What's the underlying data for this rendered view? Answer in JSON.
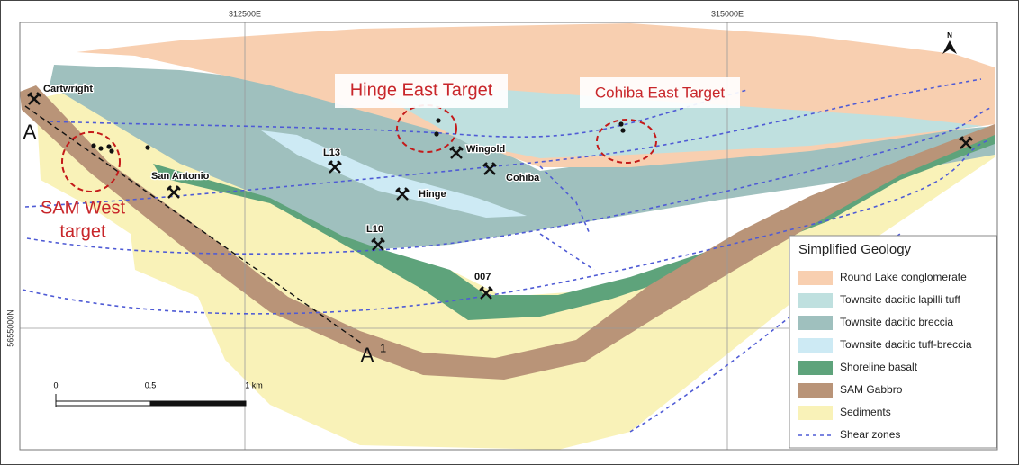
{
  "grid": {
    "eastings": [
      "312500E",
      "315000E"
    ],
    "northing": "5655000N"
  },
  "north_arrow": "N",
  "targets": [
    {
      "lines": [
        "Hinge East Target"
      ]
    },
    {
      "lines": [
        "Cohiba East Target"
      ]
    },
    {
      "lines": [
        "SAM West",
        "target"
      ]
    }
  ],
  "mines": [
    "Cartwright",
    "San Antonio",
    "L13",
    "Hinge",
    "Wingold",
    "Cohiba",
    "L10",
    "007"
  ],
  "section": {
    "start": "A",
    "end": "A",
    "end_superscript": "1"
  },
  "scale_bar": {
    "labels": [
      "0",
      "0.5",
      "1 km"
    ]
  },
  "legend": {
    "title": "Simplified Geology",
    "items": [
      {
        "label": "Round Lake conglomerate",
        "color": "#f8cfb0"
      },
      {
        "label": "Townsite dacitic lapilli tuff",
        "color": "#bfe0df"
      },
      {
        "label": "Townsite dacitic breccia",
        "color": "#9fc0be"
      },
      {
        "label": "Townsite dacitic tuff-breccia",
        "color": "#cdeaf4"
      },
      {
        "label": "Shoreline basalt",
        "color": "#5ea37b"
      },
      {
        "label": "SAM Gabbro",
        "color": "#b99478"
      },
      {
        "label": "Sediments",
        "color": "#f9f2b8"
      },
      {
        "label": "Shear zones",
        "color": "#4f5bd5"
      }
    ]
  }
}
